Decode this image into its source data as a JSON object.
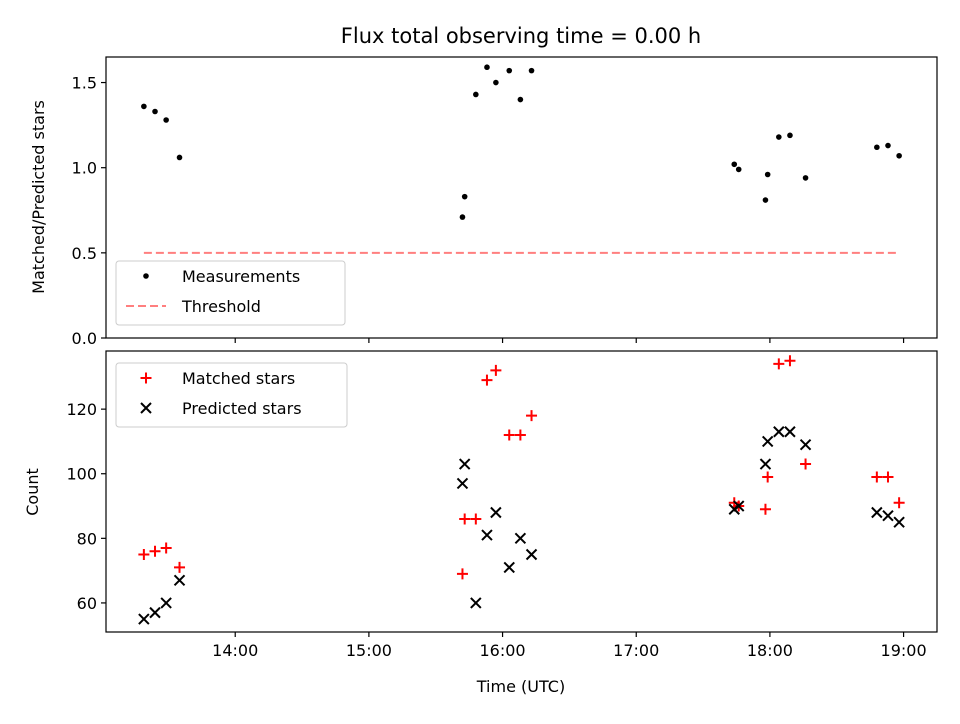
{
  "chart_data": [
    {
      "type": "scatter",
      "title": "Flux total observing time = 0.00 h",
      "xlabel": "",
      "ylabel": "Matched/Predicted stars",
      "xlim": [
        "13:02",
        "19:15"
      ],
      "ylim": [
        0,
        1.65
      ],
      "yticks": [
        "0.0",
        "0.5",
        "1.0",
        "1.5"
      ],
      "legend_position": "lower-left",
      "series": [
        {
          "name": "Measurements",
          "color": "#000000",
          "marker": "dot",
          "x": [
            "13:19",
            "13:24",
            "13:29",
            "13:35",
            "15:42",
            "15:43",
            "15:48",
            "15:53",
            "15:57",
            "16:03",
            "16:08",
            "16:13",
            "17:44",
            "17:46",
            "17:58",
            "17:59",
            "18:04",
            "18:09",
            "18:16",
            "18:48",
            "18:53",
            "18:58"
          ],
          "y": [
            1.36,
            1.33,
            1.28,
            1.06,
            0.71,
            0.83,
            1.43,
            1.59,
            1.5,
            1.57,
            1.4,
            1.57,
            1.02,
            0.99,
            0.81,
            0.96,
            1.18,
            1.19,
            0.94,
            1.12,
            1.13,
            1.07
          ]
        },
        {
          "name": "Threshold",
          "color": "#ff7f7f",
          "marker": "dashed-line",
          "x": [
            "13:19",
            "18:58"
          ],
          "y": [
            0.5,
            0.5
          ]
        }
      ]
    },
    {
      "type": "scatter",
      "title": "",
      "xlabel": "Time (UTC)",
      "ylabel": "Count",
      "xlim": [
        "13:02",
        "19:15"
      ],
      "ylim": [
        51,
        138
      ],
      "xticks": [
        "14:00",
        "15:00",
        "16:00",
        "17:00",
        "18:00",
        "19:00"
      ],
      "yticks": [
        "60",
        "80",
        "100",
        "120"
      ],
      "legend_position": "upper-left",
      "series": [
        {
          "name": "Matched stars",
          "color": "#ff0000",
          "marker": "plus",
          "x": [
            "13:19",
            "13:24",
            "13:29",
            "13:35",
            "15:42",
            "15:43",
            "15:48",
            "15:53",
            "15:57",
            "16:03",
            "16:08",
            "16:13",
            "17:44",
            "17:46",
            "17:58",
            "17:59",
            "18:04",
            "18:09",
            "18:16",
            "18:48",
            "18:53",
            "18:58"
          ],
          "y": [
            75,
            76,
            77,
            71,
            69,
            86,
            86,
            129,
            132,
            112,
            112,
            118,
            91,
            90,
            89,
            99,
            134,
            135,
            103,
            99,
            99,
            91
          ]
        },
        {
          "name": "Predicted stars",
          "color": "#000000",
          "marker": "x",
          "x": [
            "13:19",
            "13:24",
            "13:29",
            "13:35",
            "15:42",
            "15:43",
            "15:48",
            "15:53",
            "15:57",
            "16:03",
            "16:08",
            "16:13",
            "17:44",
            "17:46",
            "17:58",
            "17:59",
            "18:04",
            "18:09",
            "18:16",
            "18:48",
            "18:53",
            "18:58"
          ],
          "y": [
            55,
            57,
            60,
            67,
            97,
            103,
            60,
            81,
            88,
            71,
            80,
            75,
            89,
            90,
            103,
            110,
            113,
            113,
            109,
            88,
            87,
            85
          ]
        }
      ]
    }
  ]
}
